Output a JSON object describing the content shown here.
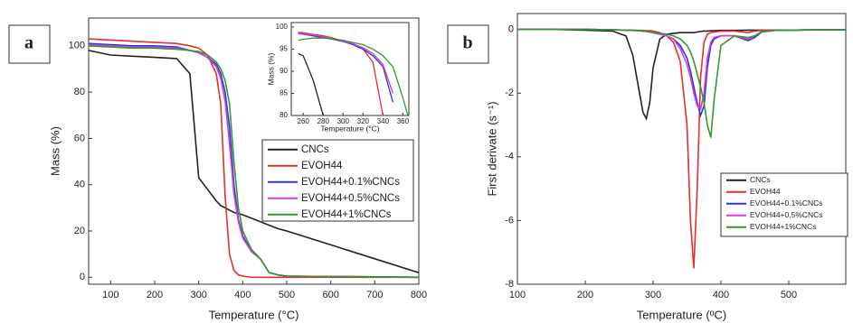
{
  "chart_data": [
    {
      "type": "line",
      "panel_label": "a",
      "x_label": "Temperature (°C)",
      "y_label": "Mass (%)",
      "x": [
        50,
        100,
        150,
        200,
        250,
        280,
        300,
        320,
        340,
        350,
        360,
        370,
        380,
        390,
        400,
        420,
        440,
        460,
        480,
        500,
        600,
        700,
        800
      ],
      "series": [
        {
          "name": "CNCs",
          "color": "#222222",
          "values": [
            98,
            96,
            95.5,
            95,
            94.5,
            88,
            43,
            38,
            33,
            31,
            30,
            29,
            28,
            27.5,
            27,
            25.5,
            24,
            22.5,
            21,
            20,
            14,
            8,
            2
          ]
        },
        {
          "name": "EVOH44",
          "color": "#e0302a",
          "values": [
            103,
            102.5,
            102,
            101.5,
            101,
            100,
            99,
            96,
            88,
            75,
            35,
            10,
            3,
            1,
            0.5,
            0,
            0,
            0,
            0,
            0,
            0,
            0,
            0
          ]
        },
        {
          "name": "EVOH44+0.1%CNCs",
          "color": "#2b36d9",
          "values": [
            101,
            100.5,
            100,
            100,
            99.5,
            98,
            97,
            95,
            92,
            88,
            80,
            65,
            40,
            25,
            18,
            11,
            8,
            2,
            1,
            0.5,
            0.3,
            0.2,
            0
          ]
        },
        {
          "name": "EVOH44+0.5%CNCs",
          "color": "#d83bd8",
          "values": [
            100.5,
            100,
            99.5,
            99.5,
            99,
            98,
            97,
            95,
            91,
            86,
            76,
            58,
            36,
            24,
            17,
            11,
            8,
            2,
            1,
            0.5,
            0.3,
            0.2,
            0
          ]
        },
        {
          "name": "EVOH44+1%CNCs",
          "color": "#2f9a2f",
          "values": [
            100,
            99.5,
            99,
            99,
            98.5,
            98,
            97.5,
            96,
            93,
            90,
            85,
            75,
            50,
            30,
            20,
            12,
            8,
            2,
            1,
            0.5,
            0.3,
            0.2,
            0
          ]
        }
      ],
      "xlim": [
        50,
        800
      ],
      "xticks": [
        100,
        200,
        300,
        400,
        500,
        600,
        700,
        800
      ],
      "ylim": [
        -3,
        112
      ],
      "yticks": [
        0,
        20,
        40,
        60,
        80,
        100
      ],
      "legend": "center-right"
    },
    {
      "type": "line",
      "x_label": "Temperature (°C)",
      "y_label": "Mass (%)",
      "x": [
        255,
        260,
        270,
        280,
        290,
        300,
        310,
        320,
        330,
        340,
        350,
        360,
        365
      ],
      "series": [
        {
          "color": "#222222",
          "values": [
            94,
            93.5,
            88,
            80,
            null,
            null,
            null,
            null,
            null,
            null,
            null,
            null,
            null
          ]
        },
        {
          "color": "#e0302a",
          "values": [
            98.8,
            98.7,
            98.3,
            98,
            97.5,
            96.8,
            96,
            95,
            92,
            80,
            null,
            null,
            null
          ]
        },
        {
          "color": "#2b36d9",
          "values": [
            98.5,
            98.4,
            98,
            97.6,
            97.2,
            96.7,
            96,
            95,
            93.5,
            91,
            83,
            null,
            null
          ]
        },
        {
          "color": "#d83bd8",
          "values": [
            98.6,
            98.5,
            98.2,
            97.8,
            97.3,
            96.8,
            96.2,
            95.3,
            94,
            91.5,
            85,
            null,
            null
          ]
        },
        {
          "color": "#2f9a2f",
          "values": [
            97,
            97.2,
            97.5,
            97.5,
            97.3,
            97,
            96.5,
            96,
            95,
            93.5,
            91,
            84,
            80
          ]
        }
      ],
      "xlim": [
        248,
        366
      ],
      "xticks": [
        260,
        280,
        300,
        320,
        340,
        360
      ],
      "ylim": [
        80,
        101
      ],
      "yticks": [
        80,
        85,
        90,
        95,
        100
      ]
    },
    {
      "type": "line",
      "panel_label": "b",
      "x_label": "Temperature (ºC)",
      "y_label": "First derivate (s⁻¹)",
      "x": [
        100,
        150,
        200,
        240,
        260,
        270,
        280,
        285,
        290,
        295,
        300,
        310,
        320,
        330,
        340,
        350,
        355,
        360,
        365,
        370,
        375,
        380,
        385,
        390,
        400,
        420,
        440,
        450,
        460,
        480,
        500,
        550,
        584
      ],
      "series": [
        {
          "name": "CNCs",
          "color": "#222222",
          "values": [
            0,
            0,
            -0.02,
            -0.05,
            -0.2,
            -0.8,
            -2.0,
            -2.6,
            -2.8,
            -2.3,
            -1.2,
            -0.3,
            -0.15,
            -0.12,
            -0.1,
            -0.1,
            -0.1,
            -0.1,
            -0.08,
            -0.06,
            -0.05,
            -0.05,
            -0.04,
            -0.04,
            -0.03,
            -0.03,
            -0.02,
            -0.02,
            -0.02,
            -0.02,
            -0.02,
            -0.01,
            -0.01
          ]
        },
        {
          "name": "EVOH44",
          "color": "#e0302a",
          "values": [
            0,
            0,
            0,
            -0.01,
            -0.02,
            -0.02,
            -0.03,
            -0.03,
            -0.04,
            -0.04,
            -0.05,
            -0.1,
            -0.2,
            -0.4,
            -1.0,
            -3.0,
            -6.0,
            -7.5,
            -5.0,
            -1.5,
            -0.4,
            -0.15,
            -0.1,
            -0.08,
            -0.05,
            -0.05,
            -0.1,
            -0.05,
            -0.03,
            -0.02,
            -0.02,
            -0.01,
            -0.01
          ]
        },
        {
          "name": "EVOH44+0.1%CNCs",
          "color": "#2b36d9",
          "values": [
            0,
            0,
            0,
            -0.01,
            -0.02,
            -0.03,
            -0.04,
            -0.05,
            -0.06,
            -0.08,
            -0.1,
            -0.15,
            -0.2,
            -0.3,
            -0.5,
            -0.9,
            -1.3,
            -1.8,
            -2.3,
            -2.7,
            -2.4,
            -1.2,
            -0.5,
            -0.3,
            -0.2,
            -0.2,
            -0.35,
            -0.25,
            -0.08,
            -0.03,
            -0.02,
            -0.01,
            -0.01
          ]
        },
        {
          "name": "EVOH44+0.5%CNCs",
          "color": "#d83bd8",
          "values": [
            0,
            0,
            0,
            -0.01,
            -0.02,
            -0.03,
            -0.04,
            -0.05,
            -0.06,
            -0.08,
            -0.1,
            -0.15,
            -0.2,
            -0.3,
            -0.6,
            -1.1,
            -1.5,
            -2.0,
            -2.4,
            -2.5,
            -2.0,
            -0.9,
            -0.4,
            -0.25,
            -0.2,
            -0.2,
            -0.3,
            -0.2,
            -0.07,
            -0.03,
            -0.02,
            -0.01,
            -0.01
          ]
        },
        {
          "name": "EVOH44+1%CNCs",
          "color": "#2f9a2f",
          "values": [
            0,
            0,
            0,
            -0.01,
            -0.02,
            -0.03,
            -0.04,
            -0.05,
            -0.06,
            -0.08,
            -0.1,
            -0.12,
            -0.15,
            -0.2,
            -0.3,
            -0.5,
            -0.7,
            -1.0,
            -1.4,
            -1.8,
            -2.3,
            -3.0,
            -3.4,
            -2.2,
            -0.5,
            -0.2,
            -0.25,
            -0.2,
            -0.07,
            -0.03,
            -0.02,
            -0.01,
            -0.01
          ]
        }
      ],
      "xlim": [
        100,
        584
      ],
      "xticks": [
        100,
        200,
        300,
        400,
        500
      ],
      "ylim": [
        -8,
        0.5
      ],
      "yticks": [
        0,
        -2,
        -4,
        -6,
        -8
      ],
      "legend": "bottom-right"
    }
  ]
}
